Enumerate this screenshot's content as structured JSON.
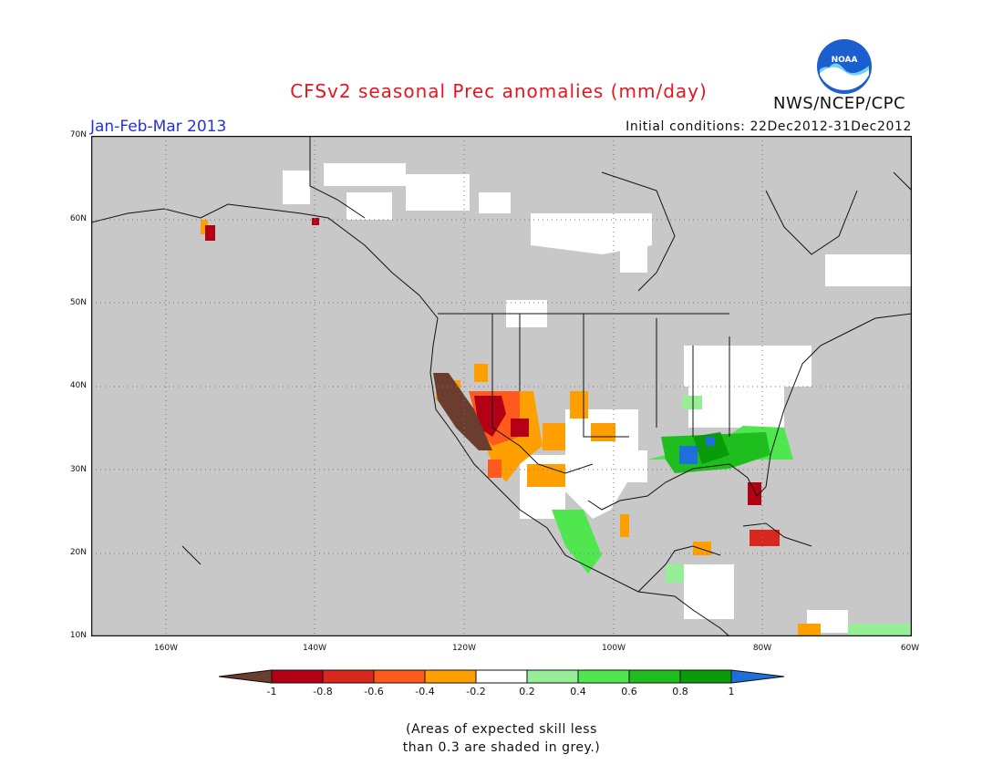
{
  "header": {
    "title": "CFSv2 seasonal Prec anomalies (mm/day)",
    "period": "Jan-Feb-Mar 2013",
    "initial_conditions": "Initial conditions: 22Dec2012-31Dec2012",
    "agency": "NWS/NCEP/CPC",
    "logo_text": "NOAA"
  },
  "map": {
    "lat_ticks": [
      "70N",
      "60N",
      "50N",
      "40N",
      "30N",
      "20N",
      "10N"
    ],
    "lon_ticks": [
      "160W",
      "140W",
      "120W",
      "100W",
      "80W",
      "60W"
    ],
    "land_color": "#c8c8c8",
    "ocean_color": "#c8c8c8"
  },
  "legend": {
    "ticks": [
      "-1",
      "-0.8",
      "-0.6",
      "-0.4",
      "-0.2",
      "0.2",
      "0.4",
      "0.6",
      "0.8",
      "1"
    ],
    "colors": [
      "#6b3d2e",
      "#b40014",
      "#d8281e",
      "#ff5a1e",
      "#ffa000",
      "#ffffff",
      "#96ee96",
      "#50e650",
      "#1ebe1e",
      "#0a9b0a",
      "#1e6edc"
    ]
  },
  "note": {
    "line1": "(Areas of expected skill less",
    "line2": "than 0.3 are shaded in grey.)"
  }
}
